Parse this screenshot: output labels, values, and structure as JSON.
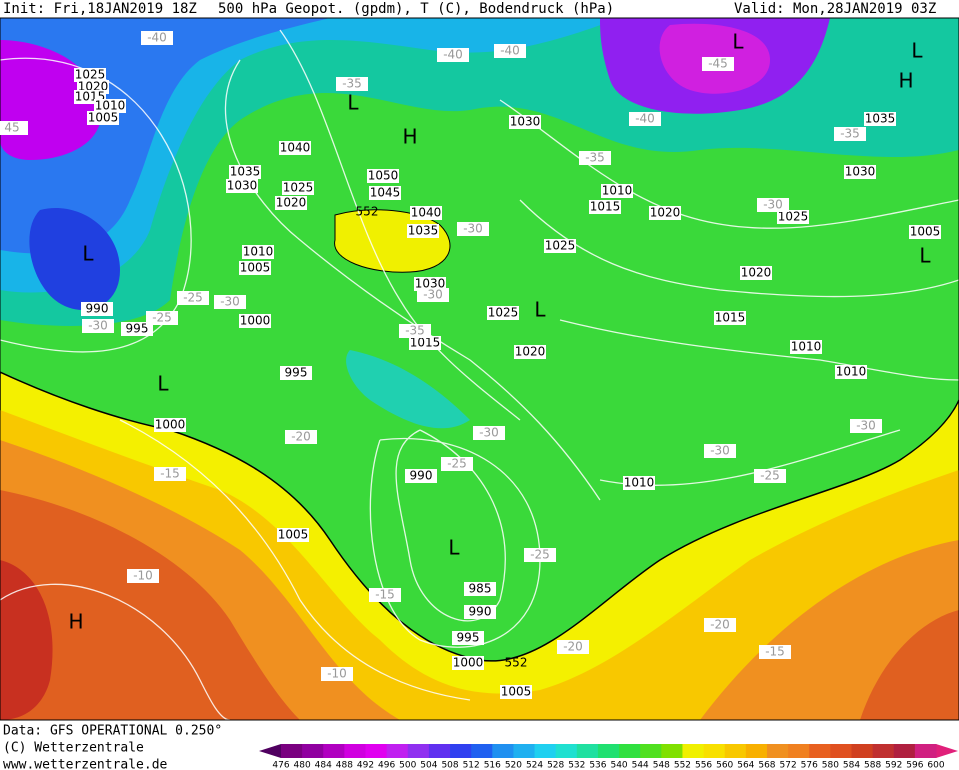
{
  "header": {
    "init": "Init: Fri,18JAN2019 18Z",
    "title": "500 hPa Geopot. (gpdm), T (C), Bodendruck (hPa)",
    "valid": "Valid: Mon,28JAN2019 03Z"
  },
  "footer": {
    "data": "Data: GFS OPERATIONAL 0.250°",
    "copyright": "(C) Wetterzentrale",
    "url": "www.wetterzentrale.de"
  },
  "colorbar": {
    "labels": [
      476,
      480,
      484,
      488,
      492,
      496,
      500,
      504,
      508,
      512,
      516,
      520,
      524,
      528,
      532,
      536,
      540,
      544,
      548,
      552,
      556,
      560,
      564,
      568,
      572,
      576,
      580,
      584,
      588,
      592,
      596,
      600
    ]
  },
  "map": {
    "isobar_labels": [
      "1025",
      "1020",
      "1015",
      "1010",
      "1005",
      "1040",
      "1035",
      "1030",
      "1025",
      "1020",
      "1050",
      "1045",
      "1040",
      "1035",
      "1030",
      "1010",
      "1005",
      "1000",
      "995",
      "990",
      "995",
      "1000",
      "1030",
      "1010",
      "1015",
      "1020",
      "1025",
      "1025",
      "1020",
      "1015",
      "1020",
      "1015",
      "1010",
      "1010",
      "1035",
      "1030",
      "1025",
      "1005",
      "990",
      "1010",
      "1005",
      "985",
      "990",
      "995",
      "1000",
      "1005"
    ],
    "temperature_labels": [
      "-40",
      "-40",
      "-40",
      "-45",
      "-40",
      "-35",
      "-35",
      "-35",
      "-30",
      "-30",
      "-30",
      "-25",
      "-30",
      "-25",
      "-30",
      "-35",
      "-30",
      "-20",
      "-25",
      "-30",
      "-25",
      "-30",
      "-15",
      "-25",
      "-10",
      "-15",
      "-20",
      "-20",
      "-15",
      "-10",
      "45"
    ],
    "centers": [
      "L",
      "L",
      "H",
      "L",
      "H",
      "L",
      "L",
      "L",
      "L",
      "L",
      "H"
    ],
    "geopotential_labels": [
      "552",
      "552"
    ]
  }
}
